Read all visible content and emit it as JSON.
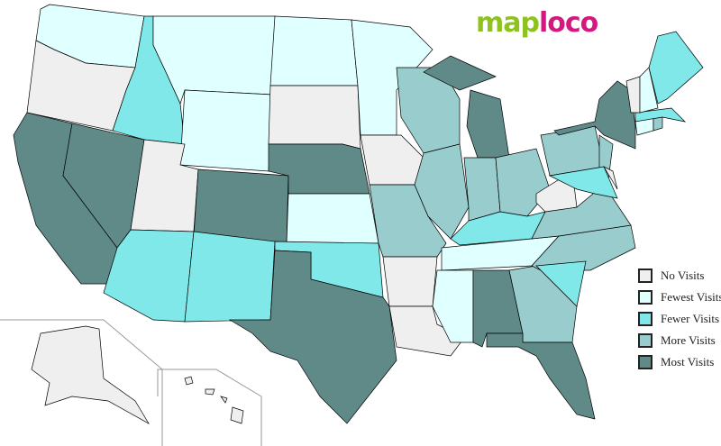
{
  "logo": {
    "part1": "map",
    "part2": "loco"
  },
  "legend": [
    {
      "key": "none",
      "label": "No Visits",
      "color": "#efefef"
    },
    {
      "key": "fewest",
      "label": "Fewest Visits",
      "color": "#e0ffff"
    },
    {
      "key": "fewer",
      "label": "Fewer Visits",
      "color": "#80e8e8"
    },
    {
      "key": "more",
      "label": "More Visits",
      "color": "#99cccc"
    },
    {
      "key": "most",
      "label": "Most Visits",
      "color": "#5f8a88"
    }
  ],
  "states": {
    "WA": "fewest",
    "OR": "none",
    "CA": "most",
    "NV": "most",
    "ID": "fewer",
    "MT": "fewest",
    "WY": "fewest",
    "UT": "none",
    "CO": "most",
    "AZ": "fewer",
    "NM": "fewer",
    "ND": "fewest",
    "SD": "none",
    "NE": "most",
    "KS": "fewest",
    "OK": "fewer",
    "TX": "most",
    "MN": "fewest",
    "IA": "none",
    "MO": "more",
    "AR": "none",
    "LA": "none",
    "WI": "more",
    "IL": "more",
    "MI": "most",
    "IN": "more",
    "OH": "more",
    "KY": "fewer",
    "TN": "fewest",
    "MS": "fewest",
    "AL": "most",
    "GA": "more",
    "FL": "most",
    "NC": "more",
    "SC": "fewer",
    "VA": "more",
    "WV": "none",
    "PA": "more",
    "NY": "most",
    "NJ": "more",
    "MD": "fewer",
    "DE": "none",
    "CT": "fewest",
    "RI": "more",
    "MA": "fewer",
    "VT": "none",
    "NH": "fewest",
    "ME": "fewer",
    "AK": "none",
    "HI": "none"
  }
}
